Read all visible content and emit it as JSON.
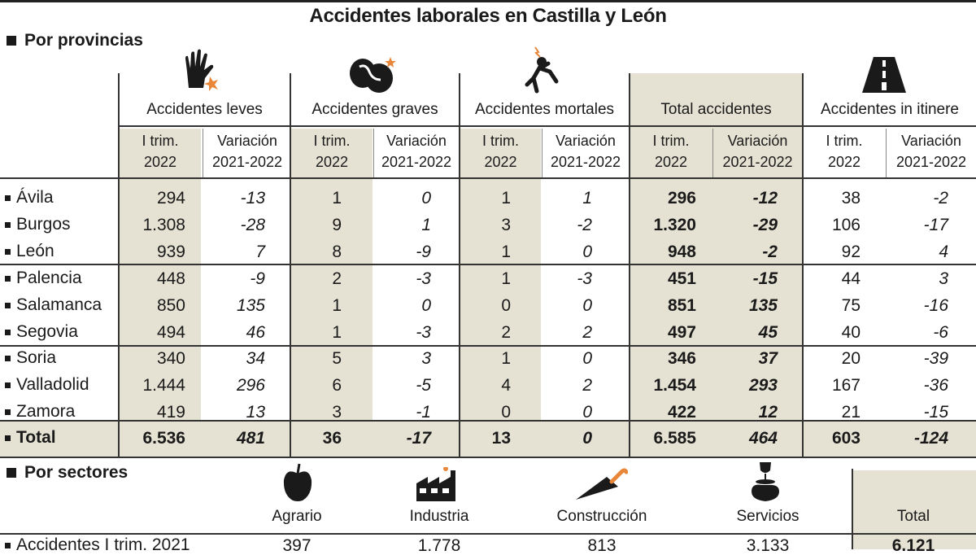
{
  "title": "Accidentes laborales en Castilla y León",
  "section1": "Por provincias",
  "groups": {
    "leves": "Accidentes leves",
    "graves": "Accidentes graves",
    "mortales": "Accidentes mortales",
    "total": "Total accidentes",
    "itinere": "Accidentes in itinere"
  },
  "sub": {
    "trim_1": "I trim.",
    "trim_2": "2022",
    "var_1": "Variación",
    "var_2": "2021-2022"
  },
  "rows": [
    {
      "name": "Ávila",
      "v": [
        "294",
        "-13",
        "1",
        "0",
        "1",
        "1",
        "296",
        "-12",
        "38",
        "-2"
      ]
    },
    {
      "name": "Burgos",
      "v": [
        "1.308",
        "-28",
        "9",
        "1",
        "3",
        "-2",
        "1.320",
        "-29",
        "106",
        "-17"
      ]
    },
    {
      "name": "León",
      "v": [
        "939",
        "7",
        "8",
        "-9",
        "1",
        "0",
        "948",
        "-2",
        "92",
        "4"
      ]
    },
    {
      "name": "Palencia",
      "v": [
        "448",
        "-9",
        "2",
        "-3",
        "1",
        "-3",
        "451",
        "-15",
        "44",
        "3"
      ]
    },
    {
      "name": "Salamanca",
      "v": [
        "850",
        "135",
        "1",
        "0",
        "0",
        "0",
        "851",
        "135",
        "75",
        "-16"
      ]
    },
    {
      "name": "Segovia",
      "v": [
        "494",
        "46",
        "1",
        "-3",
        "2",
        "2",
        "497",
        "45",
        "40",
        "-6"
      ]
    },
    {
      "name": "Soria",
      "v": [
        "340",
        "34",
        "5",
        "3",
        "1",
        "0",
        "346",
        "37",
        "20",
        "-39"
      ]
    },
    {
      "name": "Valladolid",
      "v": [
        "1.444",
        "296",
        "6",
        "-5",
        "4",
        "2",
        "1.454",
        "293",
        "167",
        "-36"
      ]
    },
    {
      "name": "Zamora",
      "v": [
        "419",
        "13",
        "3",
        "-1",
        "0",
        "0",
        "422",
        "12",
        "21",
        "-15"
      ]
    }
  ],
  "total": {
    "name": "Total",
    "v": [
      "6.536",
      "481",
      "36",
      "-17",
      "13",
      "0",
      "6.585",
      "464",
      "603",
      "-124"
    ]
  },
  "section2": "Por sectores",
  "sectors": {
    "agrario": "Agrario",
    "industria": "Industria",
    "construccion": "Construcción",
    "servicios": "Servicios",
    "total": "Total"
  },
  "sector_row": {
    "label": "Accidentes I trim. 2021",
    "values": [
      "397",
      "1.778",
      "813",
      "3.133",
      "6.121"
    ]
  },
  "icons": {
    "leves": "hurt-hand-icon",
    "graves": "broken-bone-icon",
    "mortales": "falling-person-icon",
    "itinere": "road-icon",
    "agrario": "apple-icon",
    "industria": "factory-icon",
    "construccion": "trowel-icon",
    "servicios": "waiter-icon"
  }
}
